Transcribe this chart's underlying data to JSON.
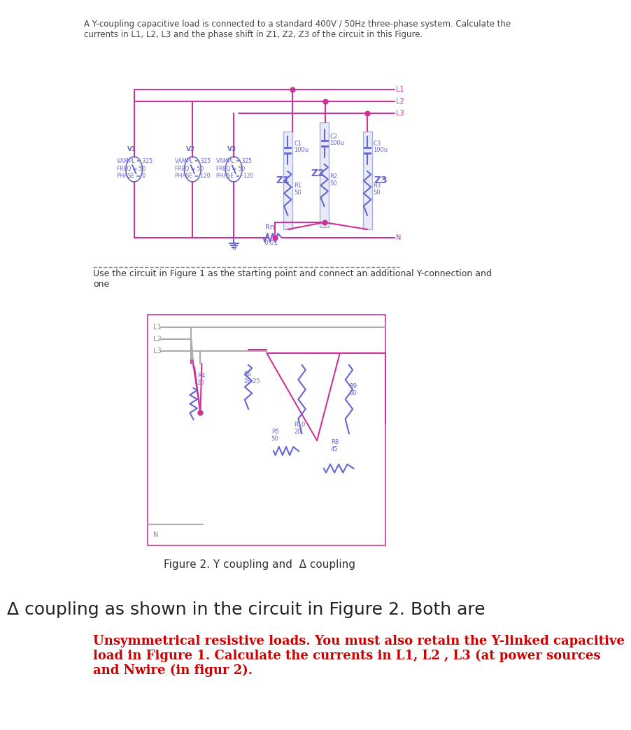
{
  "bg_color": "#ffffff",
  "line_color_pink": "#cc3399",
  "line_color_blue": "#6666cc",
  "text_color_dark": "#333333",
  "text_color_red": "#cc0000",
  "header_text": "A Y-coupling capacitive load is connected to a standard 400V / 50Hz three-phase system. Calculate the\ncurrents in L1, L2, L3 and the phase shift in Z1, Z2, Z3 of the circuit in this Figure.",
  "fig1_caption": "Use the circuit in Figure 1 as the starting point and connect an additional Y-connection and\none",
  "fig2_caption": "Figure 2. Y coupling and  Δ coupling",
  "bottom_line1": "Δ coupling as shown in the circuit in Figure 2. Both are",
  "bottom_line2": "Unsymmetrical resistive loads. You must also retain the Y-linked capacitive\nload in Figure 1. Calculate the currents in L1, L2 , L3 (at power sources\nand Nwire (in figur 2)."
}
